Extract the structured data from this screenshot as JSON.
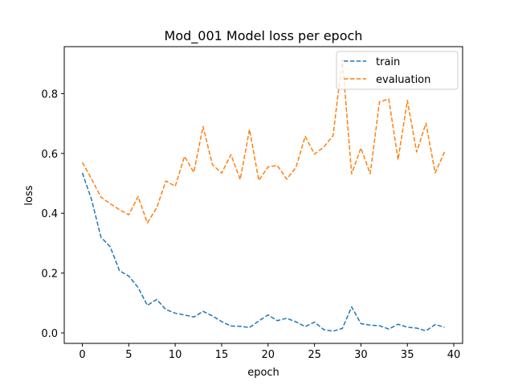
{
  "chart_data": {
    "type": "line",
    "title": "Mod_001 Model loss per epoch",
    "xlabel": "epoch",
    "ylabel": "loss",
    "xlim": [
      -1.95,
      40.95
    ],
    "ylim": [
      -0.035,
      0.957
    ],
    "xticks": [
      0,
      5,
      10,
      15,
      20,
      25,
      30,
      35,
      40
    ],
    "yticks": [
      0.0,
      0.2,
      0.4,
      0.6,
      0.8
    ],
    "ytick_labels": [
      "0.0",
      "0.2",
      "0.4",
      "0.6",
      "0.8"
    ],
    "grid": false,
    "legend_position": "top-right",
    "x": [
      0,
      1,
      2,
      3,
      4,
      5,
      6,
      7,
      8,
      9,
      10,
      11,
      12,
      13,
      14,
      15,
      16,
      17,
      18,
      19,
      20,
      21,
      22,
      23,
      24,
      25,
      26,
      27,
      28,
      29,
      30,
      31,
      32,
      33,
      34,
      35,
      36,
      37,
      38,
      39
    ],
    "series": [
      {
        "name": "train",
        "color": "#1f77b4",
        "style": "dashed",
        "values": [
          0.535,
          0.445,
          0.32,
          0.288,
          0.208,
          0.19,
          0.152,
          0.092,
          0.112,
          0.078,
          0.066,
          0.06,
          0.053,
          0.072,
          0.057,
          0.038,
          0.023,
          0.022,
          0.018,
          0.04,
          0.06,
          0.041,
          0.049,
          0.037,
          0.021,
          0.036,
          0.011,
          0.006,
          0.015,
          0.087,
          0.031,
          0.026,
          0.024,
          0.013,
          0.029,
          0.019,
          0.016,
          0.007,
          0.028,
          0.019
        ]
      },
      {
        "name": "evaluation",
        "color": "#ff7f0e",
        "style": "dashed",
        "values": [
          0.57,
          0.514,
          0.454,
          0.432,
          0.412,
          0.395,
          0.456,
          0.368,
          0.418,
          0.508,
          0.49,
          0.59,
          0.537,
          0.69,
          0.563,
          0.534,
          0.596,
          0.513,
          0.68,
          0.51,
          0.555,
          0.56,
          0.514,
          0.553,
          0.657,
          0.598,
          0.621,
          0.66,
          0.915,
          0.532,
          0.618,
          0.532,
          0.772,
          0.782,
          0.579,
          0.777,
          0.605,
          0.701,
          0.535,
          0.605
        ]
      }
    ]
  }
}
